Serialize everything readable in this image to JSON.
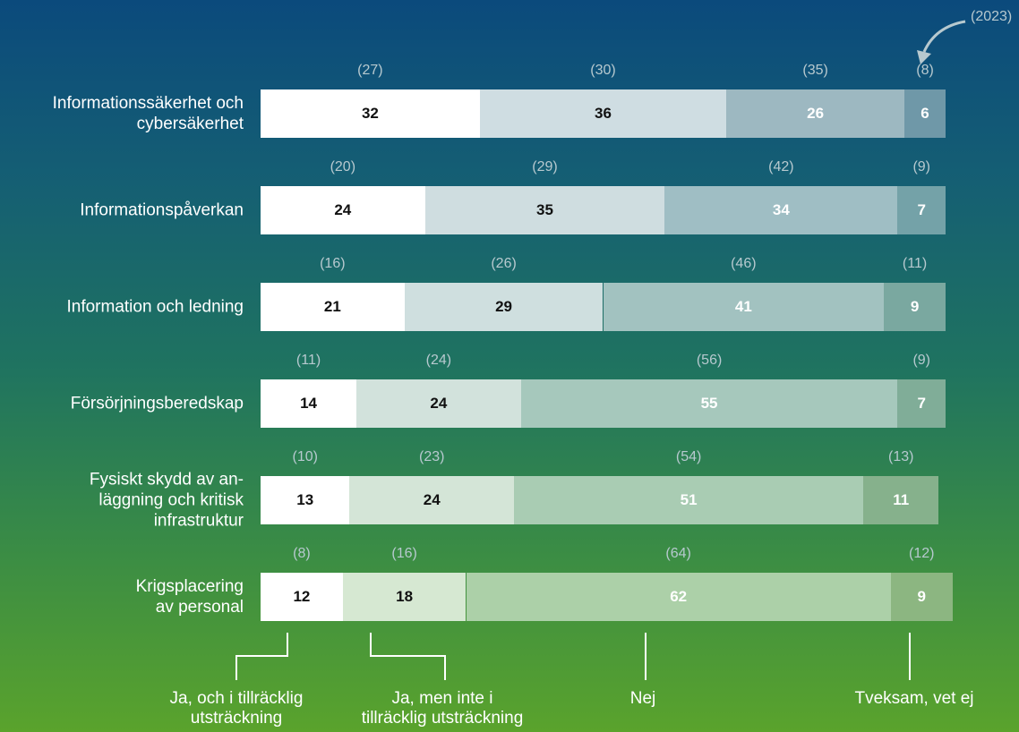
{
  "legend": {
    "year_label": "(2023)",
    "categories": [
      {
        "label_lines": [
          "Ja, och i tillräcklig",
          "utsträckning"
        ]
      },
      {
        "label_lines": [
          "Ja, men inte i",
          "tillräcklig utsträckning"
        ]
      },
      {
        "label_lines": [
          "Nej"
        ]
      },
      {
        "label_lines": [
          "Tveksam, vet ej"
        ]
      }
    ]
  },
  "colors": {
    "row_palettes": [
      [
        "#ffffff",
        "#cfdde2",
        "#9db8c1",
        "#6f98a8"
      ],
      [
        "#ffffff",
        "#cfdde0",
        "#9fbec4",
        "#74a2a8"
      ],
      [
        "#ffffff",
        "#cfdfdf",
        "#a2c2c0",
        "#7aa8a0"
      ],
      [
        "#ffffff",
        "#d2e2dc",
        "#a6c8bc",
        "#80ad98"
      ],
      [
        "#ffffff",
        "#d4e5d7",
        "#a9ccb3",
        "#86b18c"
      ],
      [
        "#ffffff",
        "#d6e8d2",
        "#acd0a8",
        "#8cb681"
      ]
    ],
    "value_text_dark": "#111111",
    "value_text_light": "#ffffff"
  },
  "chart_data": {
    "type": "bar",
    "orientation": "horizontal",
    "stacked": true,
    "categories": [
      [
        "Informationssäkerhet och",
        "cybersäkerhet"
      ],
      [
        "Informationspåverkan"
      ],
      [
        "Information och ledning"
      ],
      [
        "Försörjningsberedskap"
      ],
      [
        "Fysiskt skydd av an-",
        "läggning och kritisk",
        "infrastruktur"
      ],
      [
        "Krigsplacering",
        "av personal"
      ]
    ],
    "series": [
      {
        "name": "Ja, och i tillräcklig utsträckning",
        "values": [
          32,
          24,
          21,
          14,
          13,
          12
        ],
        "values_2023": [
          "(27)",
          "(20)",
          "(16)",
          "(11)",
          "(10)",
          "(8)"
        ]
      },
      {
        "name": "Ja, men inte i tillräcklig utsträckning",
        "values": [
          36,
          35,
          29,
          24,
          24,
          18
        ],
        "values_2023": [
          "(30)",
          "(29)",
          "(26)",
          "(24)",
          "(23)",
          "(16)"
        ]
      },
      {
        "name": "Nej",
        "values": [
          26,
          34,
          41,
          55,
          51,
          62
        ],
        "values_2023": [
          "(35)",
          "(42)",
          "(46)",
          "(56)",
          "(54)",
          "(64)"
        ]
      },
      {
        "name": "Tveksam, vet ej",
        "values": [
          6,
          7,
          9,
          7,
          11,
          9
        ],
        "values_2023": [
          "(8)",
          "(9)",
          "(11)",
          "(9)",
          "(13)",
          "(12)"
        ]
      }
    ],
    "unit": "percent"
  }
}
